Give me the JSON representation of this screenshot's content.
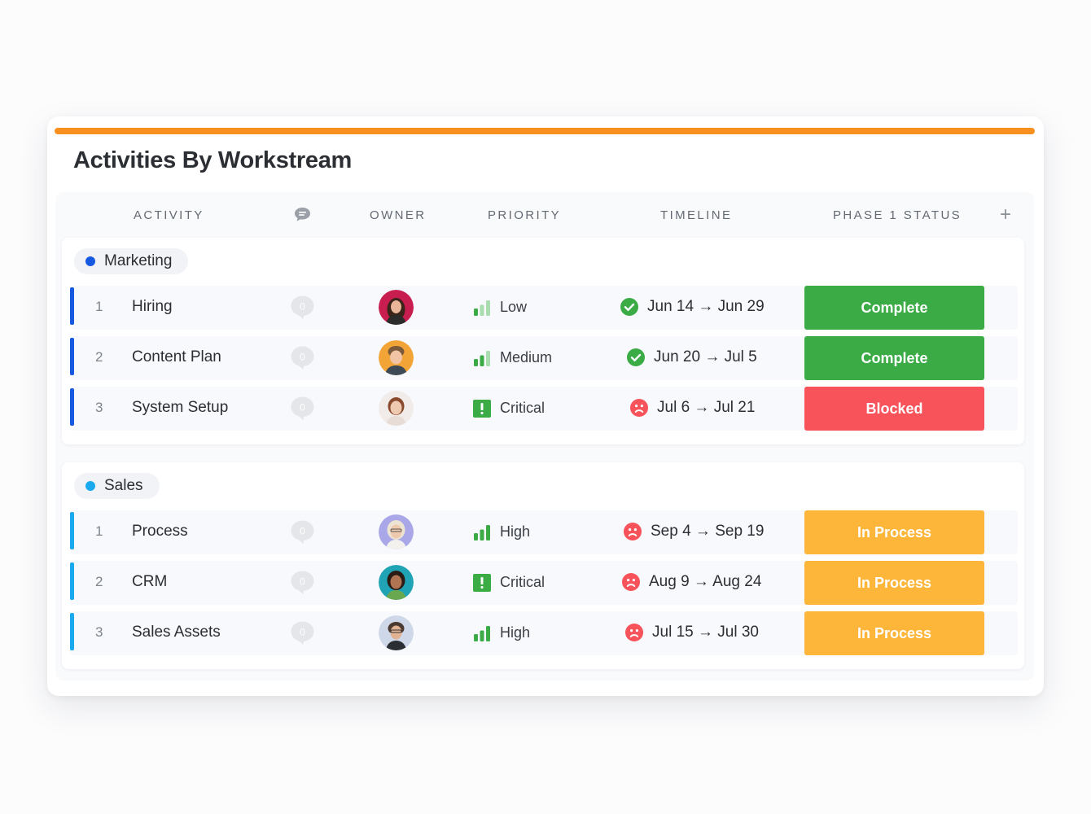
{
  "title": "Activities By Workstream",
  "colors": {
    "accent": "#f7901e",
    "complete": "#3bab45",
    "blocked": "#f8525a",
    "in_process": "#fdb53a",
    "marketing": "#1758e0",
    "sales": "#1aa9ee"
  },
  "columns": {
    "activity": "ACTIVITY",
    "comments_icon": "comment-icon",
    "owner": "OWNER",
    "priority": "PRIORITY",
    "timeline": "TIMELINE",
    "phase1_status": "PHASE 1 STATUS",
    "add_icon": "+"
  },
  "groups": [
    {
      "name": "Marketing",
      "rows": [
        {
          "num": "1",
          "activity": "Hiring",
          "comments": "0",
          "owner_avatar": "avatar-woman-dark-hair",
          "priority": "Low",
          "priority_icon": "signal-bars-icon",
          "timeline_icon": "check-circle-icon",
          "timeline": "Jun 14 → Jun 29",
          "status": "Complete"
        },
        {
          "num": "2",
          "activity": "Content Plan",
          "comments": "0",
          "owner_avatar": "avatar-man-smiling",
          "priority": "Medium",
          "priority_icon": "signal-bars-icon",
          "timeline_icon": "check-circle-icon",
          "timeline": "Jun 20 → Jul 5",
          "status": "Complete"
        },
        {
          "num": "3",
          "activity": "System Setup",
          "comments": "0",
          "owner_avatar": "avatar-woman-smiling",
          "priority": "Critical",
          "priority_icon": "exclamation-icon",
          "timeline_icon": "sad-face-icon",
          "timeline": "Jul 6 → Jul 21",
          "status": "Blocked"
        }
      ]
    },
    {
      "name": "Sales",
      "rows": [
        {
          "num": "1",
          "activity": "Process",
          "comments": "0",
          "owner_avatar": "avatar-woman-glasses",
          "priority": "High",
          "priority_icon": "signal-bars-icon",
          "timeline_icon": "sad-face-icon",
          "timeline": "Sep 4 → Sep 19",
          "status": "In Process"
        },
        {
          "num": "2",
          "activity": "CRM",
          "comments": "0",
          "owner_avatar": "avatar-woman-curly-hair",
          "priority": "Critical",
          "priority_icon": "exclamation-icon",
          "timeline_icon": "sad-face-icon",
          "timeline": "Aug 9 → Aug 24",
          "status": "In Process"
        },
        {
          "num": "3",
          "activity": "Sales Assets",
          "comments": "0",
          "owner_avatar": "avatar-man-glasses",
          "priority": "High",
          "priority_icon": "signal-bars-icon",
          "timeline_icon": "sad-face-icon",
          "timeline": "Jul 15 → Jul 30",
          "status": "In Process"
        }
      ]
    }
  ]
}
